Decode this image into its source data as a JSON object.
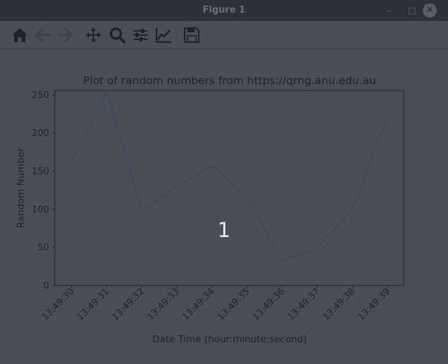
{
  "window": {
    "title": "Figure 1",
    "minimize_glyph": "–",
    "maximize_glyph": "□",
    "close_glyph": "✕"
  },
  "toolbar": {
    "items": [
      {
        "name": "home-icon"
      },
      {
        "name": "back-arrow-icon"
      },
      {
        "name": "forward-arrow-icon"
      },
      {
        "name": "pan-move-icon"
      },
      {
        "name": "zoom-magnifier-icon"
      },
      {
        "name": "configure-subplots-icon"
      },
      {
        "name": "edit-axis-curve-icon"
      },
      {
        "name": "save-floppy-icon"
      }
    ]
  },
  "overlay": {
    "digit": "1"
  },
  "colors": {
    "line": "#334a64",
    "axes": "#1f2126",
    "text": "#1f2126"
  },
  "chart_data": {
    "type": "line",
    "title": "Plot of random numbers from https://qrng.anu.edu.au",
    "xlabel": "Date Time (hour:minute:second)",
    "ylabel": "Random Number",
    "categories": [
      "13:49:30",
      "13:49:31",
      "13:49:32",
      "13:49:33",
      "13:49:34",
      "13:49:35",
      "13:49:36",
      "13:49:37",
      "13:49:38",
      "13:49:39"
    ],
    "values": [
      163,
      255,
      97,
      130,
      157,
      117,
      32,
      50,
      100,
      222
    ],
    "ylim": [
      0,
      255
    ],
    "yticks": [
      0,
      50,
      100,
      150,
      200,
      250
    ],
    "grid": false
  }
}
